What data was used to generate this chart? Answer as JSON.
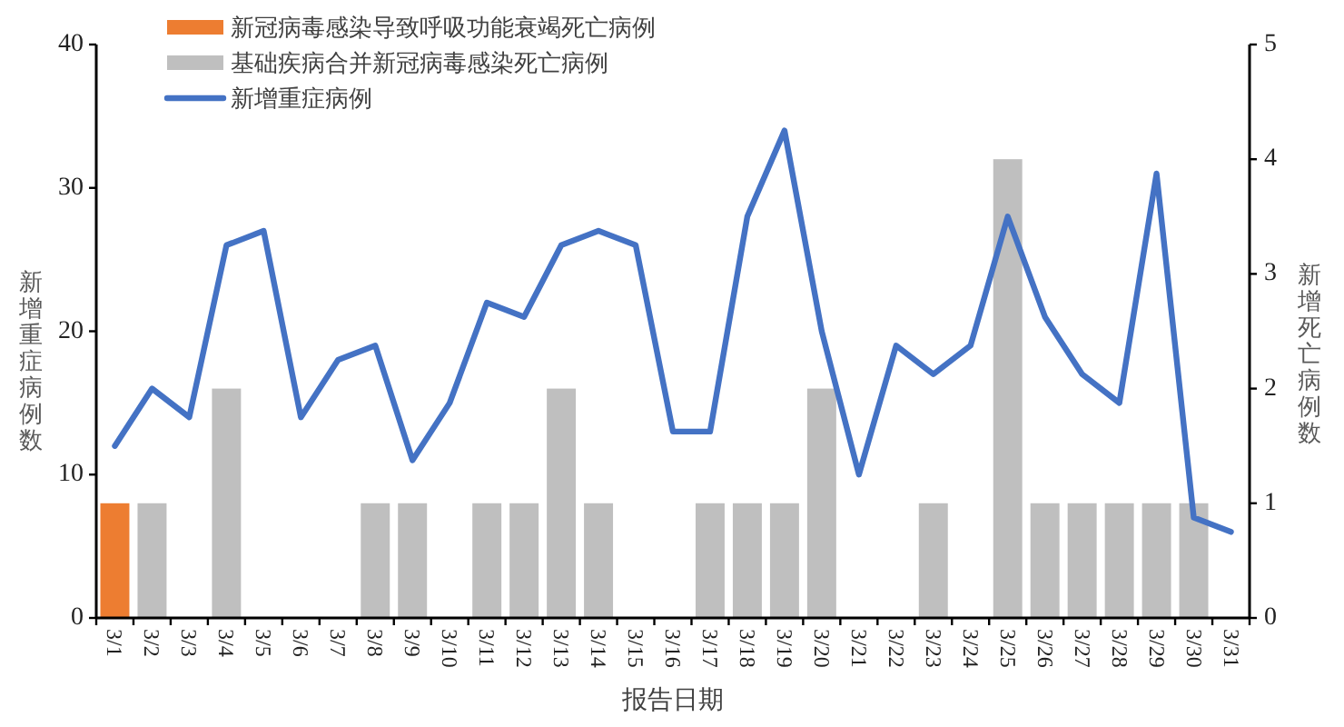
{
  "chart_data": {
    "type": "bar",
    "xlabel": "报告日期",
    "ylabel": "新增重症病例数",
    "y2label": "新增死亡病例数",
    "categories": [
      "3/1",
      "3/2",
      "3/3",
      "3/4",
      "3/5",
      "3/6",
      "3/7",
      "3/8",
      "3/9",
      "3/10",
      "3/11",
      "3/12",
      "3/13",
      "3/14",
      "3/15",
      "3/16",
      "3/17",
      "3/18",
      "3/19",
      "3/20",
      "3/21",
      "3/22",
      "3/23",
      "3/24",
      "3/25",
      "3/26",
      "3/27",
      "3/28",
      "3/29",
      "3/30",
      "3/31"
    ],
    "stacked": true,
    "legend": "top left",
    "grid": false,
    "ylim": [
      0,
      40
    ],
    "yticks": [
      0,
      10,
      20,
      30,
      40
    ],
    "y2lim": [
      0,
      5
    ],
    "y2ticks": [
      0,
      1,
      2,
      3,
      4,
      5
    ],
    "series": [
      {
        "name": "新冠病毒感染导致呼吸功能衰竭死亡病例",
        "axis": "y2",
        "color": "#ed7d31",
        "values": [
          1,
          0,
          0,
          0,
          0,
          0,
          0,
          0,
          0,
          0,
          0,
          0,
          0,
          0,
          0,
          0,
          0,
          0,
          0,
          0,
          0,
          0,
          0,
          0,
          0,
          0,
          0,
          0,
          0,
          0,
          0
        ]
      },
      {
        "name": "基础疾病合并新冠病毒感染死亡病例",
        "axis": "y2",
        "color": "#bfbfbf",
        "values": [
          0,
          1,
          0,
          2,
          0,
          0,
          0,
          1,
          1,
          0,
          1,
          1,
          2,
          1,
          0,
          0,
          1,
          1,
          1,
          2,
          0,
          0,
          1,
          0,
          4,
          1,
          1,
          1,
          1,
          1,
          0
        ]
      },
      {
        "name": "新增重症病例",
        "type": "line",
        "axis": "y",
        "color": "#4472c4",
        "values": [
          12,
          16,
          14,
          26,
          27,
          14,
          18,
          19,
          11,
          15,
          22,
          21,
          26,
          27,
          26,
          13,
          13,
          28,
          34,
          20,
          10,
          19,
          17,
          19,
          28,
          21,
          17,
          15,
          31,
          7,
          6
        ]
      }
    ]
  }
}
